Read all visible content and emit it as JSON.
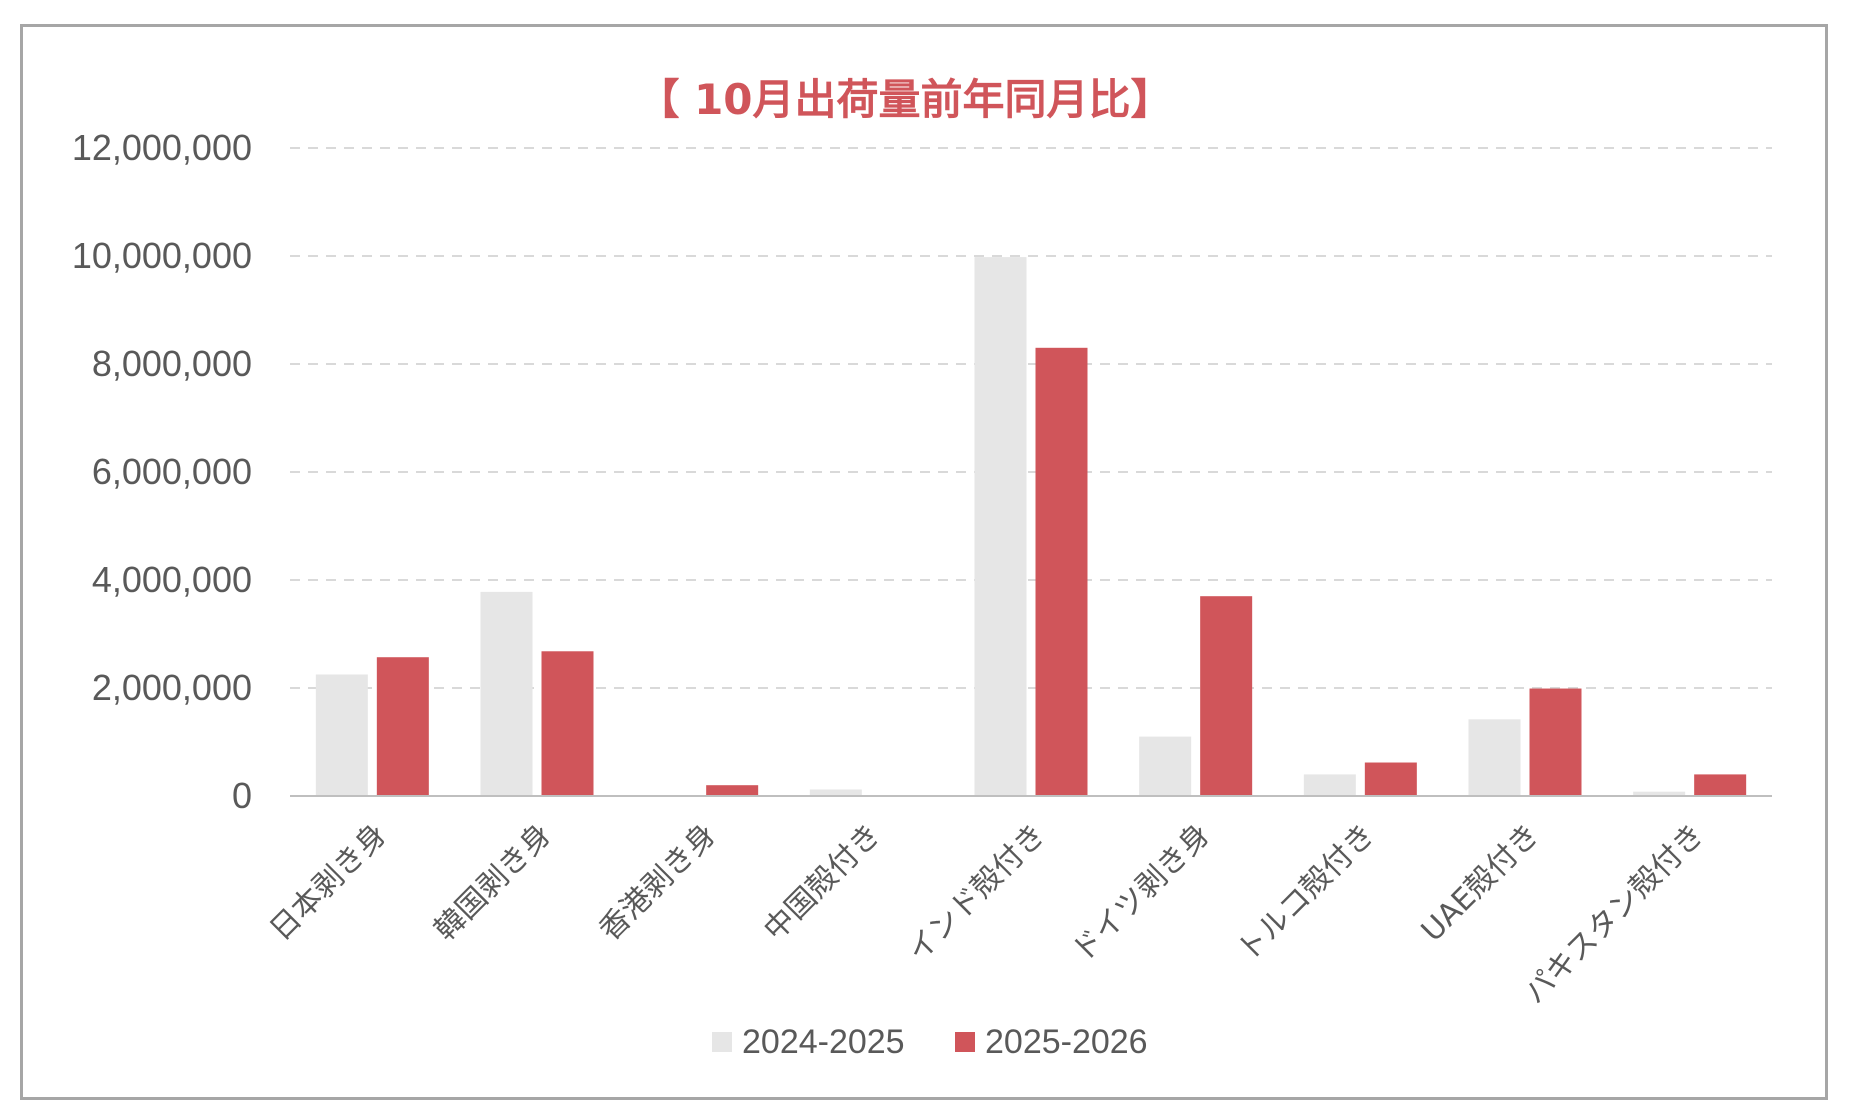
{
  "chart_data": {
    "type": "bar",
    "title": "【 10月出荷量前年同月比】",
    "categories": [
      "日本剥き身",
      "韓国剥き身",
      "香港剥き身",
      "中国殻付き",
      "インド殻付き",
      "ドイツ剥き身",
      "トルコ殻付き",
      "UAE殻付き",
      "パキスタン殻付き"
    ],
    "series": [
      {
        "name": "2024-2025",
        "color": "#e6e6e6",
        "values": [
          2250000,
          3780000,
          0,
          120000,
          9980000,
          1100000,
          400000,
          1420000,
          80000
        ]
      },
      {
        "name": "2025-2026",
        "color": "#d0555a",
        "values": [
          2570000,
          2680000,
          200000,
          0,
          8300000,
          3700000,
          620000,
          1990000,
          400000
        ]
      }
    ],
    "yticks": [
      "0",
      "2,000,000",
      "4,000,000",
      "6,000,000",
      "8,000,000",
      "10,000,000",
      "12,000,000"
    ],
    "ylim": [
      0,
      12000000
    ],
    "grid": true,
    "legend": "bottom",
    "xlabel": "",
    "ylabel": ""
  }
}
